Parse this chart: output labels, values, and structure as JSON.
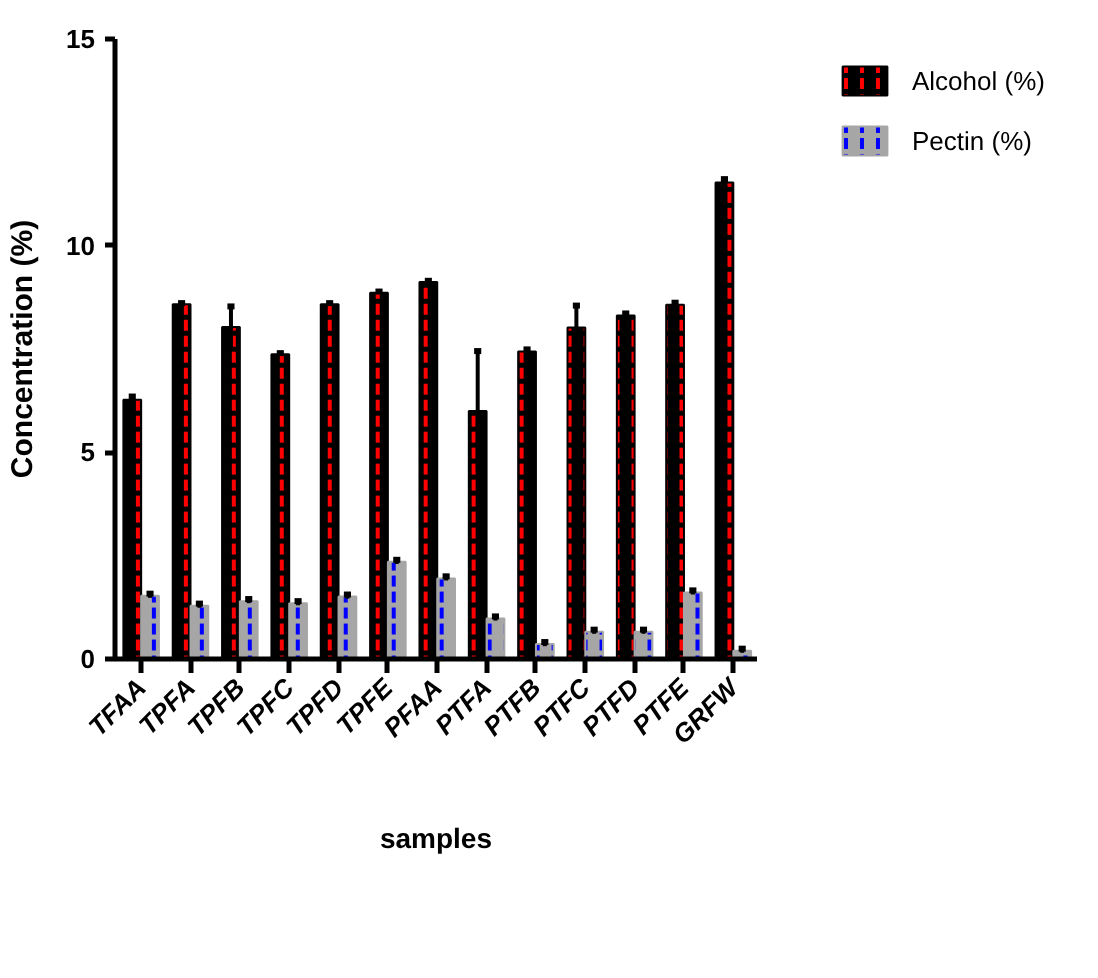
{
  "chart_data": {
    "type": "bar",
    "xlabel": "samples",
    "ylabel": "Concentration (%)",
    "categories": [
      "TFAA",
      "TPFA",
      "TPFB",
      "TPFC",
      "TPFD",
      "TPFE",
      "PFAA",
      "PTFA",
      "PTFB",
      "PTFC",
      "PTFD",
      "PTFE",
      "GRFW"
    ],
    "series": [
      {
        "name": "Alcohol (%)",
        "color": "#000000",
        "values": [
          6.27,
          8.58,
          8.03,
          7.37,
          8.58,
          8.86,
          9.12,
          6.0,
          7.44,
          8.02,
          8.31,
          8.57,
          11.53
        ],
        "errors": [
          0.08,
          0.03,
          0.5,
          0.03,
          0.03,
          0.03,
          0.03,
          1.45,
          0.05,
          0.53,
          0.05,
          0.05,
          0.08
        ]
      },
      {
        "name": "Pectin (%)",
        "color": "#a6a6a6",
        "values": [
          1.53,
          1.29,
          1.4,
          1.35,
          1.51,
          2.35,
          1.95,
          0.98,
          0.36,
          0.66,
          0.66,
          1.61,
          0.2
        ],
        "errors": [
          0.05,
          0.05,
          0.05,
          0.05,
          0.05,
          0.05,
          0.05,
          0.05,
          0.05,
          0.05,
          0.05,
          0.05,
          0.05
        ]
      }
    ],
    "ylim": [
      0,
      15
    ],
    "yticks": [
      0,
      5,
      10,
      15
    ],
    "legend": "top right"
  }
}
